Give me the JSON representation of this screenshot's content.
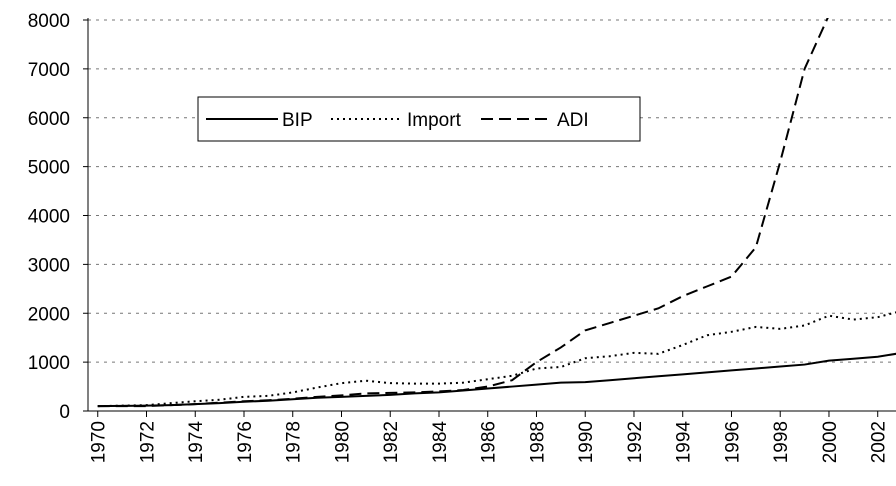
{
  "chart_data": {
    "type": "line",
    "x": [
      1970,
      1971,
      1972,
      1973,
      1974,
      1975,
      1976,
      1977,
      1978,
      1979,
      1980,
      1981,
      1982,
      1983,
      1984,
      1985,
      1986,
      1987,
      1988,
      1989,
      1990,
      1991,
      1992,
      1993,
      1994,
      1995,
      1996,
      1997,
      1998,
      1999,
      2000,
      2001,
      2002,
      2003
    ],
    "series": [
      {
        "name": "BIP",
        "color": "#000000",
        "style": "solid",
        "values": [
          100,
          105,
          110,
          120,
          140,
          160,
          190,
          210,
          240,
          270,
          290,
          310,
          330,
          360,
          380,
          420,
          460,
          500,
          540,
          580,
          590,
          630,
          670,
          710,
          750,
          790,
          830,
          870,
          910,
          950,
          1030,
          1070,
          1110,
          1190
        ]
      },
      {
        "name": "Import",
        "color": "#000000",
        "style": "dotted",
        "values": [
          100,
          110,
          120,
          160,
          200,
          230,
          290,
          310,
          380,
          480,
          570,
          620,
          570,
          560,
          560,
          580,
          650,
          720,
          870,
          900,
          1080,
          1120,
          1190,
          1170,
          1350,
          1550,
          1620,
          1720,
          1680,
          1750,
          1950,
          1870,
          1920,
          2050
        ]
      },
      {
        "name": "ADI",
        "color": "#000000",
        "style": "dashed",
        "values": [
          100,
          100,
          100,
          120,
          140,
          170,
          200,
          220,
          250,
          290,
          320,
          360,
          370,
          380,
          400,
          430,
          500,
          630,
          1000,
          1300,
          1650,
          1800,
          1950,
          2100,
          2350,
          2550,
          2750,
          3350,
          5100,
          7000,
          8100,
          null,
          null,
          null
        ]
      }
    ],
    "xlim": [
      1969.6,
      2002.75
    ],
    "xticks": [
      1970,
      1972,
      1974,
      1976,
      1978,
      1980,
      1982,
      1984,
      1986,
      1988,
      1990,
      1992,
      1994,
      1996,
      1998,
      2000,
      2002
    ],
    "ylim": [
      0,
      8000
    ],
    "yticks": [
      0,
      1000,
      2000,
      3000,
      4000,
      5000,
      6000,
      7000,
      8000
    ],
    "grid": true,
    "legend": "top-left"
  }
}
